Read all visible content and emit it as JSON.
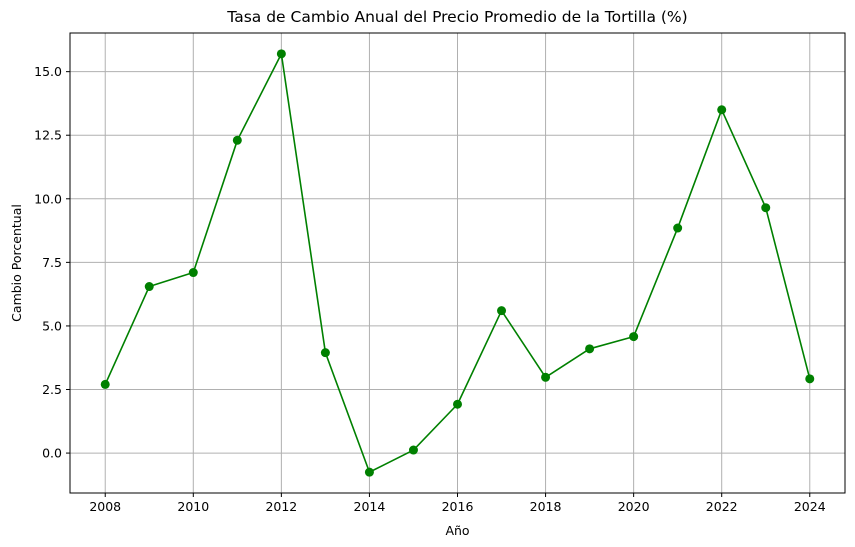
{
  "chart_data": {
    "type": "line",
    "title": "Tasa de Cambio Anual del Precio Promedio de la Tortilla (%)",
    "xlabel": "Año",
    "ylabel": "Cambio Porcentual",
    "x": [
      2008,
      2009,
      2010,
      2011,
      2012,
      2013,
      2014,
      2015,
      2016,
      2017,
      2018,
      2019,
      2020,
      2021,
      2022,
      2023,
      2024
    ],
    "series": [
      {
        "values": [
          2.7,
          6.55,
          7.1,
          12.3,
          15.7,
          3.95,
          -0.75,
          0.12,
          1.92,
          5.6,
          2.98,
          4.1,
          4.58,
          8.85,
          13.5,
          9.65,
          2.92
        ],
        "color": "#008000",
        "marker": "circle"
      }
    ],
    "xticks": [
      2008,
      2010,
      2012,
      2014,
      2016,
      2018,
      2020,
      2022,
      2024
    ],
    "xtick_labels": [
      "2008",
      "2010",
      "2012",
      "2014",
      "2016",
      "2018",
      "2020",
      "2022",
      "2024"
    ],
    "yticks": [
      0.0,
      2.5,
      5.0,
      7.5,
      10.0,
      12.5,
      15.0
    ],
    "ytick_labels": [
      "0.0",
      "2.5",
      "5.0",
      "7.5",
      "10.0",
      "12.5",
      "15.0"
    ],
    "xlim": [
      2007.2,
      2024.8
    ],
    "ylim": [
      -1.57,
      16.52
    ],
    "grid": true,
    "legend": "none"
  }
}
